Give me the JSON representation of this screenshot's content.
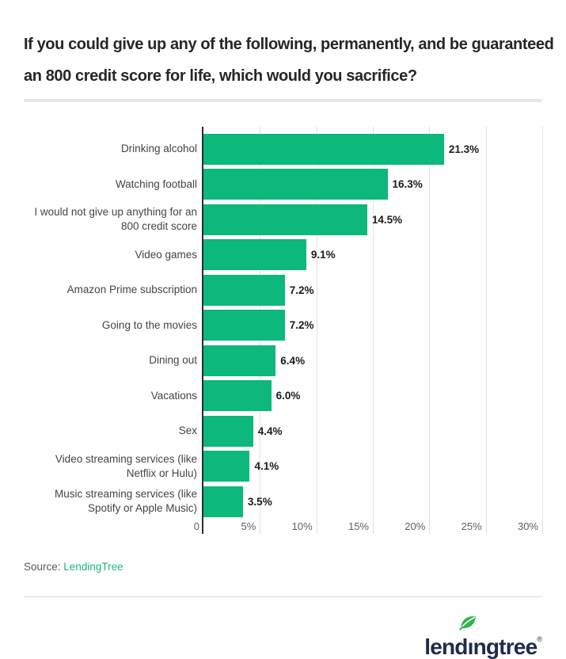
{
  "title": {
    "line1": "If you could give up any of the following, permanently, and be guaranteed",
    "line2": "an 800 credit score for life, which would you sacrifice?"
  },
  "chart_data": {
    "type": "bar",
    "orientation": "horizontal",
    "title": "If you could give up any of the following, permanently, and be guaranteed an 800 credit score for life, which would you sacrifice?",
    "categories": [
      "Drinking alcohol",
      "Watching football",
      "I would not give up anything for an 800 credit score",
      "Video games",
      "Amazon Prime subscription",
      "Going to the movies",
      "Dining out",
      "Vacations",
      "Sex",
      "Video streaming services (like Netflix or Hulu)",
      "Music streaming services (like Spotify or Apple Music)"
    ],
    "values": [
      21.3,
      16.3,
      14.5,
      9.1,
      7.2,
      7.2,
      6.4,
      6.0,
      4.4,
      4.1,
      3.5
    ],
    "value_labels": [
      "21.3%",
      "16.3%",
      "14.5%",
      "9.1%",
      "7.2%",
      "7.2%",
      "6.4%",
      "6.0%",
      "4.4%",
      "4.1%",
      "3.5%"
    ],
    "x_ticks": [
      "0",
      "5%",
      "10%",
      "15%",
      "20%",
      "25%",
      "30%"
    ],
    "xlim": [
      0,
      30
    ],
    "grid": true,
    "legend": false,
    "bar_color": "#0cb87a",
    "axis_color": "#2d2d2d",
    "gridline_color": "#e0e0e0"
  },
  "source": {
    "label": "Source:",
    "link_text": "LendingTree",
    "link_color": "#1bb585"
  },
  "footer": {
    "logo_text_before_leaf": "lend",
    "logo_text_after_leaf": "ngtree",
    "logo_dotless_i": "ı",
    "registered_mark": "®",
    "logo_color": "#1e2c49",
    "leaf_color": "#2fb44b",
    "leaf_icon": "leaf-icon"
  }
}
